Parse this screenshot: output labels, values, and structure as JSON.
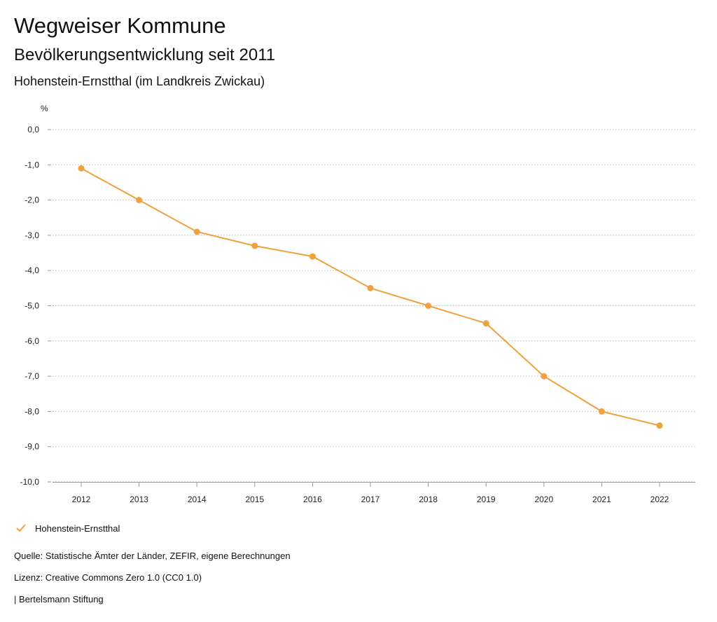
{
  "header": {
    "title": "Wegweiser Kommune",
    "subtitle": "Bevölkerungsentwicklung seit 2011",
    "region": "Hohenstein-Ernstthal (im Landkreis Zwickau)"
  },
  "chart_data": {
    "type": "line",
    "x": [
      "2012",
      "2013",
      "2014",
      "2015",
      "2016",
      "2017",
      "2018",
      "2019",
      "2020",
      "2021",
      "2022"
    ],
    "series": [
      {
        "name": "Hohenstein-Ernstthal",
        "values": [
          -1.1,
          -2.0,
          -2.9,
          -3.3,
          -3.6,
          -4.5,
          -5.0,
          -5.5,
          -7.0,
          -8.0,
          -8.4
        ]
      }
    ],
    "ylabel": "%",
    "ylim": [
      -10,
      0
    ],
    "yticks": [
      0,
      -1,
      -2,
      -3,
      -4,
      -5,
      -6,
      -7,
      -8,
      -9,
      -10
    ],
    "ytick_labels": [
      "0,0",
      "-1,0",
      "-2,0",
      "-3,0",
      "-4,0",
      "-5,0",
      "-6,0",
      "-7,0",
      "-8,0",
      "-9,0",
      "-10,0"
    ],
    "grid": true,
    "legend_position": "bottom-left",
    "colors": {
      "series": "#f0a03c",
      "grid": "#b8b8b8",
      "axis": "#999999"
    }
  },
  "legend": {
    "label": "Hohenstein-Ernstthal"
  },
  "footer": {
    "source": "Quelle: Statistische Ämter der Länder, ZEFIR, eigene Berechnungen",
    "license": "Lizenz: Creative Commons Zero 1.0 (CC0 1.0)",
    "brand": "| Bertelsmann Stiftung"
  }
}
